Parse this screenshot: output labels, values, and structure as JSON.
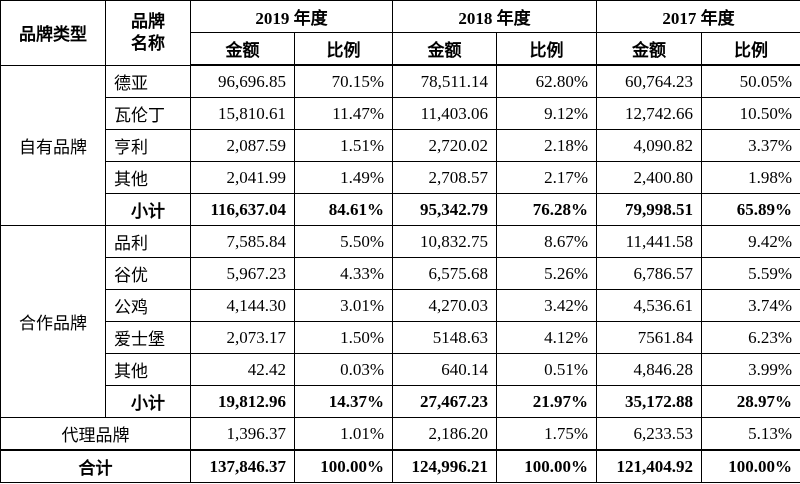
{
  "header": {
    "brand_type": "品牌类型",
    "brand_name": [
      "品牌",
      "名称"
    ],
    "years": [
      "2019 年度",
      "2018 年度",
      "2017 年度"
    ],
    "amount": "金额",
    "ratio": "比例"
  },
  "groups": [
    {
      "name": "自有品牌",
      "rows": [
        {
          "brand": "德亚",
          "values": [
            "96,696.85",
            "70.15%",
            "78,511.14",
            "62.80%",
            "60,764.23",
            "50.05%"
          ]
        },
        {
          "brand": "瓦伦丁",
          "values": [
            "15,810.61",
            "11.47%",
            "11,403.06",
            "9.12%",
            "12,742.66",
            "10.50%"
          ]
        },
        {
          "brand": "亨利",
          "values": [
            "2,087.59",
            "1.51%",
            "2,720.02",
            "2.18%",
            "4,090.82",
            "3.37%"
          ]
        },
        {
          "brand": "其他",
          "values": [
            "2,041.99",
            "1.49%",
            "2,708.57",
            "2.17%",
            "2,400.80",
            "1.98%"
          ]
        }
      ],
      "subtotal": {
        "label": "小计",
        "values": [
          "116,637.04",
          "84.61%",
          "95,342.79",
          "76.28%",
          "79,998.51",
          "65.89%"
        ]
      }
    },
    {
      "name": "合作品牌",
      "rows": [
        {
          "brand": "品利",
          "values": [
            "7,585.84",
            "5.50%",
            "10,832.75",
            "8.67%",
            "11,441.58",
            "9.42%"
          ]
        },
        {
          "brand": "谷优",
          "values": [
            "5,967.23",
            "4.33%",
            "6,575.68",
            "5.26%",
            "6,786.57",
            "5.59%"
          ]
        },
        {
          "brand": "公鸡",
          "values": [
            "4,144.30",
            "3.01%",
            "4,270.03",
            "3.42%",
            "4,536.61",
            "3.74%"
          ]
        },
        {
          "brand": "爱士堡",
          "values": [
            "2,073.17",
            "1.50%",
            "5148.63",
            "4.12%",
            "7561.84",
            "6.23%"
          ]
        },
        {
          "brand": "其他",
          "values": [
            "42.42",
            "0.03%",
            "640.14",
            "0.51%",
            "4,846.28",
            "3.99%"
          ]
        }
      ],
      "subtotal": {
        "label": "小计",
        "values": [
          "19,812.96",
          "14.37%",
          "27,467.23",
          "21.97%",
          "35,172.88",
          "28.97%"
        ]
      }
    }
  ],
  "agency": {
    "name": "代理品牌",
    "values": [
      "1,396.37",
      "1.01%",
      "2,186.20",
      "1.75%",
      "6,233.53",
      "5.13%"
    ]
  },
  "total": {
    "label": "合计",
    "values": [
      "137,846.37",
      "100.00%",
      "124,996.21",
      "100.00%",
      "121,404.92",
      "100.00%"
    ]
  }
}
